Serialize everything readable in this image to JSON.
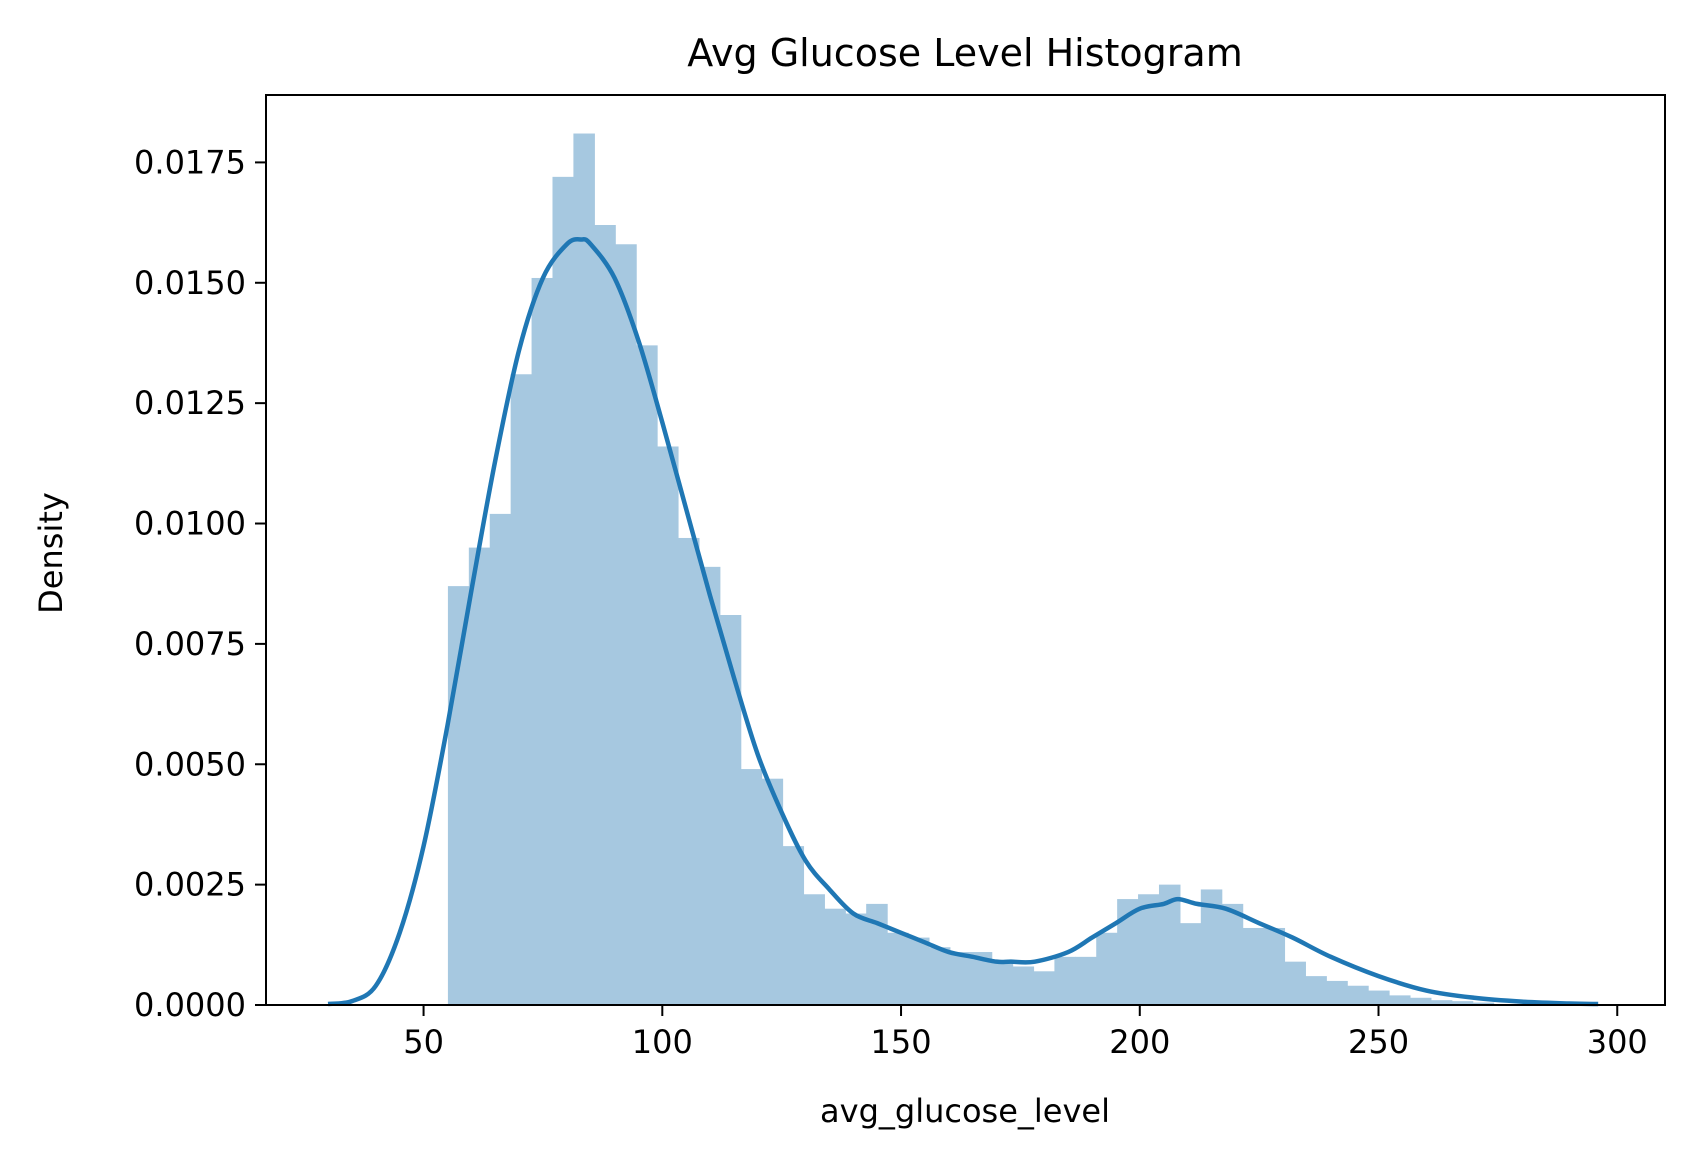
{
  "chart_data": {
    "type": "bar",
    "title": "Avg Glucose Level Histogram",
    "xlabel": "avg_glucose_level",
    "ylabel": "Density",
    "xlim": [
      17,
      310
    ],
    "ylim": [
      0,
      0.0189
    ],
    "xticks": [
      50,
      100,
      150,
      200,
      250,
      300
    ],
    "xtick_labels": [
      "50",
      "100",
      "150",
      "200",
      "250",
      "300"
    ],
    "yticks": [
      0,
      0.0025,
      0.005,
      0.0075,
      0.01,
      0.0125,
      0.015,
      0.0175
    ],
    "ytick_labels": [
      "0.0000",
      "0.0025",
      "0.0050",
      "0.0075",
      "0.0100",
      "0.0125",
      "0.0150",
      "0.0175"
    ],
    "grid": false,
    "colors": {
      "bars": "#a6c8e0",
      "kde": "#1f77b4"
    },
    "histogram": {
      "bin_start": 55.1,
      "bin_width": 4.38,
      "values": [
        0.0087,
        0.0095,
        0.0102,
        0.0131,
        0.0151,
        0.0172,
        0.0181,
        0.0162,
        0.0158,
        0.0137,
        0.0116,
        0.0097,
        0.0091,
        0.0081,
        0.0049,
        0.0047,
        0.0033,
        0.0023,
        0.002,
        0.0019,
        0.0021,
        0.0015,
        0.0014,
        0.0012,
        0.0011,
        0.0011,
        0.0009,
        0.0008,
        0.0007,
        0.001,
        0.001,
        0.0015,
        0.0022,
        0.0023,
        0.0025,
        0.0017,
        0.0024,
        0.0021,
        0.0016,
        0.0016,
        0.0009,
        0.0006,
        0.0005,
        0.0004,
        0.0003,
        0.0002,
        0.00015,
        0.0001,
        8e-05,
        5e-05
      ]
    },
    "kde": {
      "x": [
        30,
        35,
        40,
        45,
        50,
        55,
        60,
        65,
        70,
        75,
        80,
        83,
        85,
        90,
        95,
        100,
        105,
        110,
        115,
        120,
        125,
        130,
        135,
        140,
        145,
        150,
        155,
        160,
        165,
        170,
        173,
        178,
        185,
        190,
        195,
        200,
        205,
        208,
        212,
        218,
        225,
        232,
        240,
        250,
        260,
        270,
        280,
        290,
        296
      ],
      "y": [
        2e-05,
        8e-05,
        0.0004,
        0.0015,
        0.0033,
        0.0058,
        0.0086,
        0.0113,
        0.0136,
        0.0151,
        0.0158,
        0.0159,
        0.0158,
        0.0151,
        0.0138,
        0.0121,
        0.0103,
        0.0085,
        0.0068,
        0.0052,
        0.004,
        0.003,
        0.0024,
        0.0019,
        0.0017,
        0.0015,
        0.0013,
        0.0011,
        0.001,
        0.0009,
        0.0009,
        0.0009,
        0.0011,
        0.0014,
        0.0017,
        0.002,
        0.0021,
        0.0022,
        0.0021,
        0.002,
        0.0017,
        0.0014,
        0.001,
        0.0006,
        0.0003,
        0.00015,
        7e-05,
        3e-05,
        2e-05
      ]
    }
  }
}
